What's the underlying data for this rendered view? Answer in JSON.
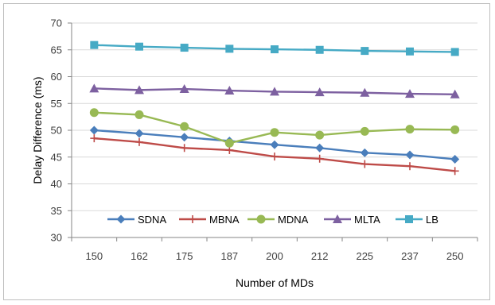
{
  "chart_data": {
    "type": "line",
    "title": "",
    "xlabel": "Number of MDs",
    "ylabel": "Delay Difference (ms)",
    "categories": [
      "150",
      "162",
      "175",
      "187",
      "200",
      "212",
      "225",
      "237",
      "250"
    ],
    "ylim": [
      30,
      70
    ],
    "yticks": [
      "30",
      "35",
      "40",
      "45",
      "50",
      "55",
      "60",
      "65",
      "70"
    ],
    "grid": "horizontal",
    "legend_position": "inside-bottom",
    "series": [
      {
        "name": "SDNA",
        "color": "#4a7ebb",
        "marker": "diamond",
        "values": [
          50.0,
          49.4,
          48.7,
          48.0,
          47.3,
          46.7,
          45.8,
          45.4,
          44.6
        ]
      },
      {
        "name": "MBNA",
        "color": "#be4b48",
        "marker": "plus",
        "values": [
          48.5,
          47.8,
          46.7,
          46.3,
          45.1,
          44.7,
          43.7,
          43.3,
          42.4
        ]
      },
      {
        "name": "MDNA",
        "color": "#98b954",
        "marker": "circle",
        "values": [
          53.3,
          52.9,
          50.7,
          47.6,
          49.6,
          49.1,
          49.8,
          50.2,
          50.1
        ]
      },
      {
        "name": "MLTA",
        "color": "#7d60a0",
        "marker": "triangle",
        "values": [
          57.8,
          57.5,
          57.7,
          57.4,
          57.2,
          57.1,
          57.0,
          56.8,
          56.7
        ]
      },
      {
        "name": "LB",
        "color": "#46aac5",
        "marker": "square",
        "values": [
          65.9,
          65.6,
          65.4,
          65.2,
          65.1,
          65.0,
          64.8,
          64.7,
          64.6
        ]
      }
    ]
  }
}
